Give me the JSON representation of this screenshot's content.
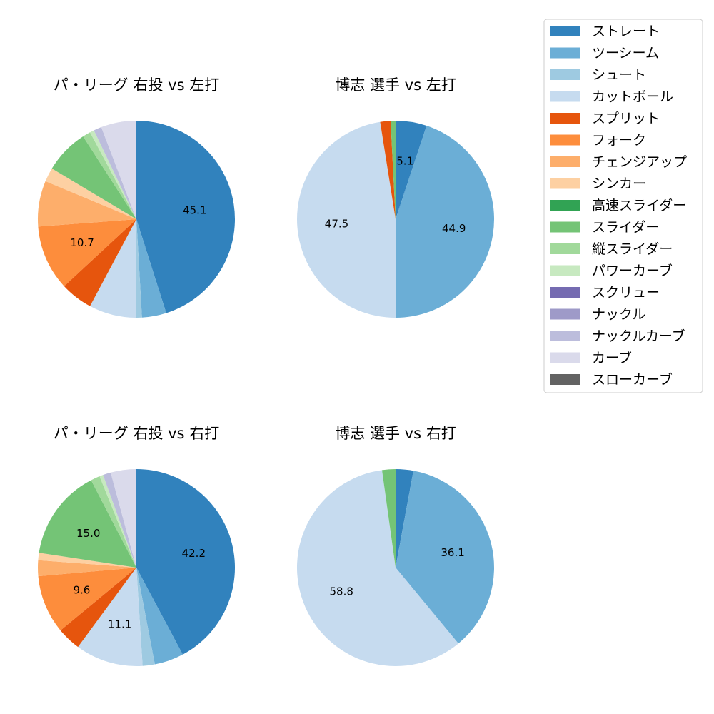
{
  "chart_data": {
    "type": "pie",
    "legend_position": "top-right",
    "categories": [
      "ストレート",
      "ツーシーム",
      "シュート",
      "カットボール",
      "スプリット",
      "フォーク",
      "チェンジアップ",
      "シンカー",
      "高速スライダー",
      "スライダー",
      "縦スライダー",
      "パワーカーブ",
      "スクリュー",
      "ナックル",
      "ナックルカーブ",
      "カーブ",
      "スローカーブ"
    ],
    "colors": [
      "#3182bd",
      "#6baed6",
      "#9ecae1",
      "#c6dbef",
      "#e6550d",
      "#fd8d3c",
      "#fdae6b",
      "#fdd0a2",
      "#31a354",
      "#74c476",
      "#a1d99b",
      "#c7e9c0",
      "#756bb1",
      "#9e9ac8",
      "#bcbddc",
      "#dadaeb",
      "#636363"
    ],
    "charts": [
      {
        "title": "パ・リーグ 右投 vs 左打",
        "values": [
          45.1,
          4.0,
          1.0,
          7.7,
          5.3,
          10.7,
          7.5,
          2.3,
          0.0,
          7.3,
          1.3,
          0.7,
          0.0,
          0.0,
          1.3,
          5.8,
          0.0
        ],
        "labels": [
          "45.1",
          "",
          "",
          "",
          "",
          "10.7",
          "",
          "",
          "",
          "",
          "",
          "",
          "",
          "",
          "",
          "",
          ""
        ]
      },
      {
        "title": "博志 選手 vs 左打",
        "values": [
          5.1,
          44.9,
          0.0,
          47.5,
          1.7,
          0.0,
          0.0,
          0.0,
          0.0,
          0.8,
          0.0,
          0.0,
          0.0,
          0.0,
          0.0,
          0.0,
          0.0
        ],
        "labels": [
          "5.1",
          "44.9",
          "",
          "47.5",
          "",
          "",
          "",
          "",
          "",
          "",
          "",
          "",
          "",
          "",
          "",
          "",
          ""
        ]
      },
      {
        "title": "パ・リーグ 右投 vs 右打",
        "values": [
          42.2,
          4.8,
          2.0,
          11.1,
          3.9,
          9.6,
          2.6,
          1.2,
          0.0,
          15.0,
          1.5,
          0.6,
          0.0,
          0.0,
          1.3,
          4.2,
          0.0
        ],
        "labels": [
          "42.2",
          "",
          "",
          "11.1",
          "",
          "9.6",
          "",
          "",
          "",
          "15.0",
          "",
          "",
          "",
          "",
          "",
          "",
          ""
        ]
      },
      {
        "title": "博志 選手 vs 右打",
        "values": [
          2.9,
          36.1,
          0.0,
          58.8,
          0.0,
          0.0,
          0.0,
          0.0,
          0.0,
          2.2,
          0.0,
          0.0,
          0.0,
          0.0,
          0.0,
          0.0,
          0.0
        ],
        "labels": [
          "",
          "36.1",
          "",
          "58.8",
          "",
          "",
          "",
          "",
          "",
          "",
          "",
          "",
          "",
          "",
          "",
          "",
          ""
        ]
      }
    ]
  }
}
